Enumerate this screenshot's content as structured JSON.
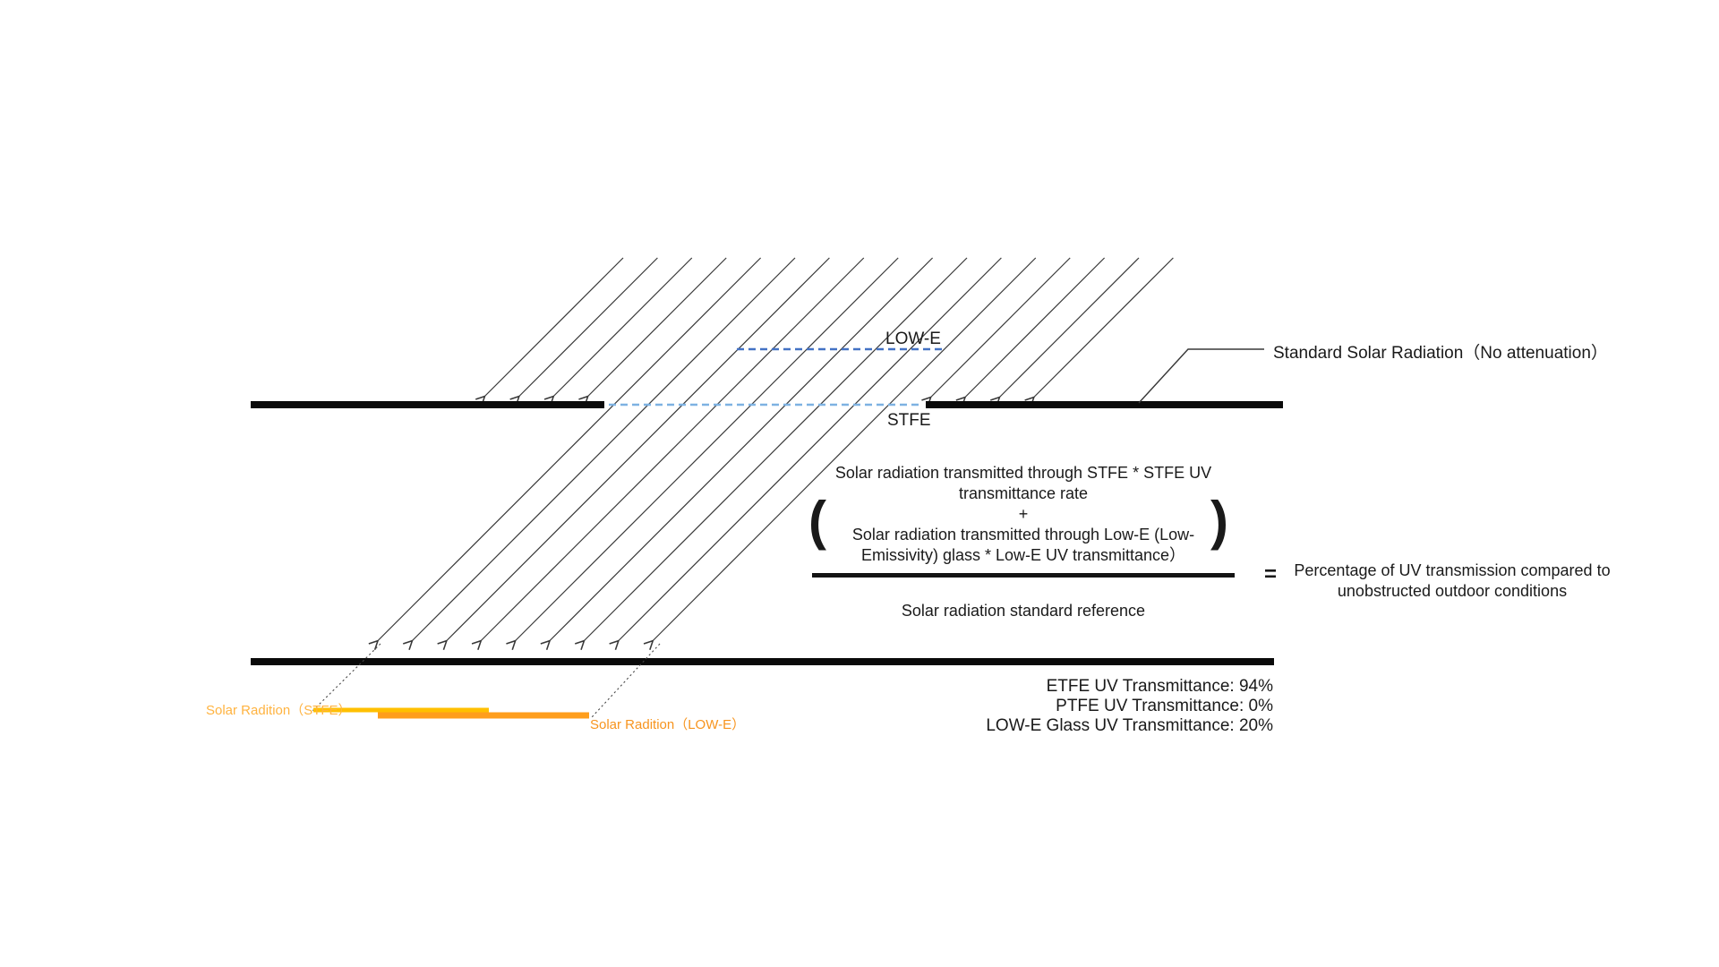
{
  "colors": {
    "ray": "#383838",
    "panel": "#0a0a0a",
    "stfe_dash": "#7EB2E2",
    "lowe_dash": "#4472C4",
    "orange_light": "#FFC000",
    "orange_dark": "#FF9E1C",
    "stfe_label_orange": "#FFB340",
    "lowe_label_orange": "#F7941E",
    "dotted_leader": "#4a4a4a"
  },
  "labels": {
    "lowe_layer": "LOW-E",
    "stfe_layer": "STFE",
    "standard_radiation": "Standard Solar Radiation（No attenuation）",
    "solar_radiation_stfe": "Solar Radition（STFE）",
    "solar_radiation_lowe": "Solar Radition（LOW-E）"
  },
  "formula": {
    "open_paren": "(",
    "close_paren": ")",
    "numerator_line1": "Solar radiation transmitted through STFE * STFE UV",
    "numerator_line2": "transmittance rate",
    "plus": "+",
    "numerator_line3": "Solar radiation transmitted through Low-E (Low-",
    "numerator_line4": "Emissivity) glass * Low-E UV transmittance）",
    "denominator": "Solar radiation standard reference",
    "equals": "=",
    "result_line1": "Percentage of UV transmission compared to",
    "result_line2": "unobstructed outdoor conditions"
  },
  "notes": {
    "etfe": "ETFE UV Transmittance: 94%",
    "ptfe": "PTFE UV Transmittance: 0%",
    "lowe_glass": "LOW-E Glass UV Transmittance: 20%"
  }
}
